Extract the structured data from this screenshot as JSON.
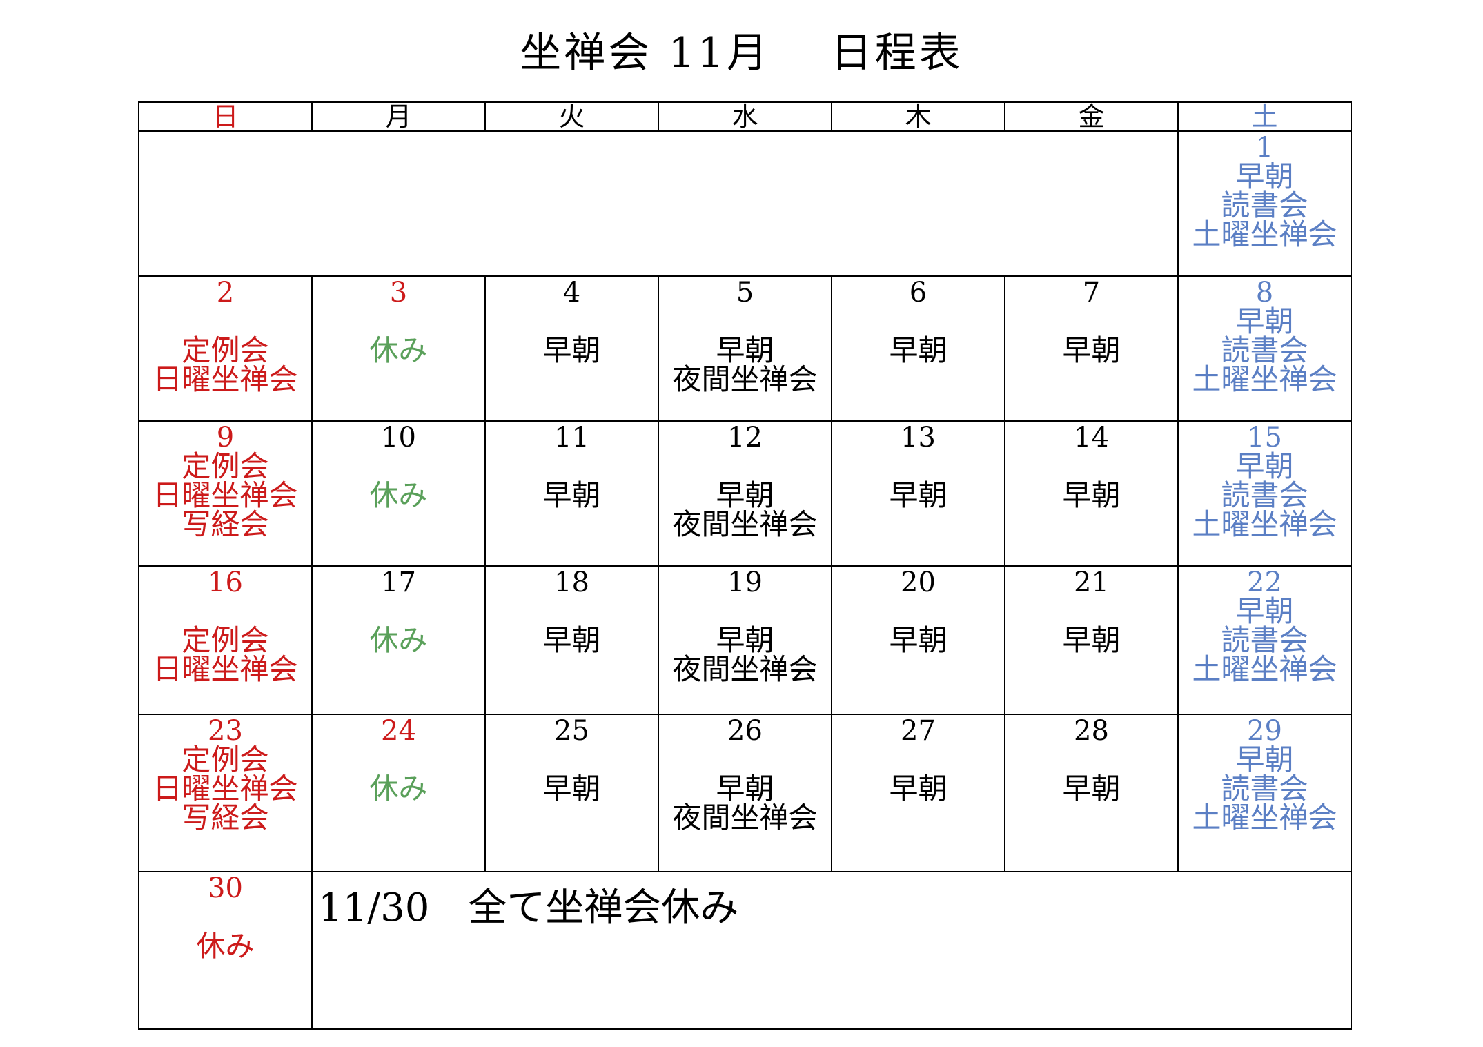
{
  "title": "坐禅会 11月　 日程表",
  "weekdays": [
    "日",
    "月",
    "火",
    "水",
    "木",
    "金",
    "土"
  ],
  "colors": {
    "sunday": "#cc1a1a",
    "saturday": "#5b7fc4",
    "holiday": "#5aa05a",
    "default": "#000000"
  },
  "week1": {
    "sat": {
      "day": "1",
      "events": [
        "早朝",
        "読書会",
        "土曜坐禅会"
      ]
    }
  },
  "week2": {
    "sun": {
      "day": "2",
      "events": [
        "定例会",
        "日曜坐禅会"
      ]
    },
    "mon": {
      "day": "3",
      "events": [
        "休み"
      ]
    },
    "tue": {
      "day": "4",
      "events": [
        "早朝"
      ]
    },
    "wed": {
      "day": "5",
      "events": [
        "早朝",
        "夜間坐禅会"
      ]
    },
    "thu": {
      "day": "6",
      "events": [
        "早朝"
      ]
    },
    "fri": {
      "day": "7",
      "events": [
        "早朝"
      ]
    },
    "sat": {
      "day": "8",
      "events": [
        "早朝",
        "読書会",
        "土曜坐禅会"
      ]
    }
  },
  "week3": {
    "sun": {
      "day": "9",
      "events": [
        "定例会",
        "日曜坐禅会",
        "写経会"
      ]
    },
    "mon": {
      "day": "10",
      "events": [
        "休み"
      ]
    },
    "tue": {
      "day": "11",
      "events": [
        "早朝"
      ]
    },
    "wed": {
      "day": "12",
      "events": [
        "早朝",
        "夜間坐禅会"
      ]
    },
    "thu": {
      "day": "13",
      "events": [
        "早朝"
      ]
    },
    "fri": {
      "day": "14",
      "events": [
        "早朝"
      ]
    },
    "sat": {
      "day": "15",
      "events": [
        "早朝",
        "読書会",
        "土曜坐禅会"
      ]
    }
  },
  "week4": {
    "sun": {
      "day": "16",
      "events": [
        "定例会",
        "日曜坐禅会"
      ]
    },
    "mon": {
      "day": "17",
      "events": [
        "休み"
      ]
    },
    "tue": {
      "day": "18",
      "events": [
        "早朝"
      ]
    },
    "wed": {
      "day": "19",
      "events": [
        "早朝",
        "夜間坐禅会"
      ]
    },
    "thu": {
      "day": "20",
      "events": [
        "早朝"
      ]
    },
    "fri": {
      "day": "21",
      "events": [
        "早朝"
      ]
    },
    "sat": {
      "day": "22",
      "events": [
        "早朝",
        "読書会",
        "土曜坐禅会"
      ]
    }
  },
  "week5": {
    "sun": {
      "day": "23",
      "events": [
        "定例会",
        "日曜坐禅会",
        "写経会"
      ]
    },
    "mon": {
      "day": "24",
      "events": [
        "休み"
      ]
    },
    "tue": {
      "day": "25",
      "events": [
        "早朝"
      ]
    },
    "wed": {
      "day": "26",
      "events": [
        "早朝",
        "夜間坐禅会"
      ]
    },
    "thu": {
      "day": "27",
      "events": [
        "早朝"
      ]
    },
    "fri": {
      "day": "28",
      "events": [
        "早朝"
      ]
    },
    "sat": {
      "day": "29",
      "events": [
        "早朝",
        "読書会",
        "土曜坐禅会"
      ]
    }
  },
  "week6": {
    "sun": {
      "day": "30",
      "events": [
        "休み"
      ]
    },
    "note": "11/30　全て坐禅会休み"
  }
}
